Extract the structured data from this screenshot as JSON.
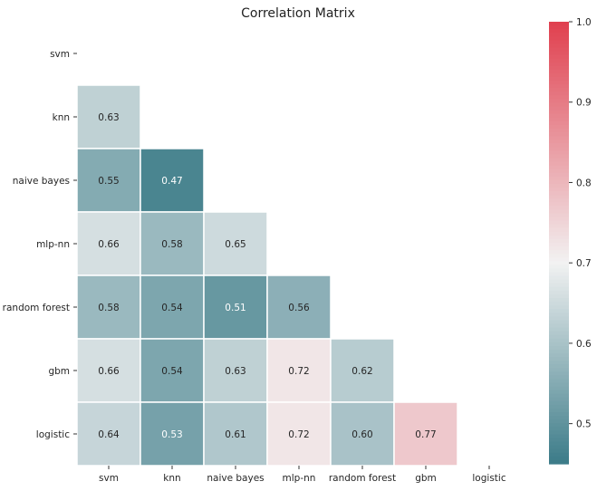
{
  "chart_data": {
    "type": "heatmap",
    "title": "Correlation Matrix",
    "xlabel": "",
    "ylabel": "",
    "mask": "upper-triangle-including-diagonal",
    "labels": [
      "svm",
      "knn",
      "naive bayes",
      "mlp-nn",
      "random forest",
      "gbm",
      "logistic"
    ],
    "values": [
      [
        null,
        null,
        null,
        null,
        null,
        null,
        null
      ],
      [
        0.63,
        null,
        null,
        null,
        null,
        null,
        null
      ],
      [
        0.55,
        0.47,
        null,
        null,
        null,
        null,
        null
      ],
      [
        0.66,
        0.58,
        0.65,
        null,
        null,
        null,
        null
      ],
      [
        0.58,
        0.54,
        0.51,
        0.56,
        null,
        null,
        null
      ],
      [
        0.66,
        0.54,
        0.63,
        0.72,
        0.62,
        null,
        null
      ],
      [
        0.64,
        0.53,
        0.61,
        0.72,
        0.6,
        0.77,
        null
      ]
    ],
    "value_format": "0.00",
    "colorbar": {
      "vmin": 0.45,
      "vmax": 1.0,
      "center": 0.7,
      "ticks": [
        0.5,
        0.6,
        0.7,
        0.8,
        0.9,
        1.0
      ],
      "tick_labels": [
        "0.5",
        "0.6",
        "0.7",
        "0.8",
        "0.9",
        "1.0"
      ],
      "colormap": "diverging teal-white-red",
      "colors": {
        "low": "#3b7b88",
        "mid": "#f2f2f2",
        "high": "#e03f4e"
      }
    },
    "grid": false,
    "legend": "colorbar right"
  }
}
